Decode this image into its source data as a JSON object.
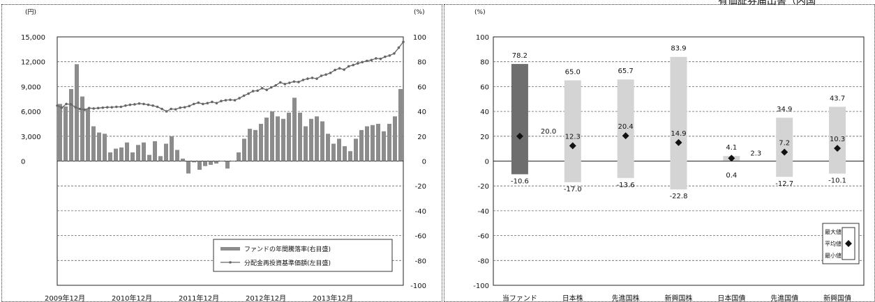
{
  "header_text": "有価証券届出書（内国",
  "chart_data": [
    {
      "type": "bar",
      "y_unit_left": "(円)",
      "y_unit_right": "(%)",
      "x_tick_labels": [
        "2009年12月",
        "2010年12月",
        "2011年12月",
        "2012年12月",
        "2013年12月"
      ],
      "y_left_ticks": [
        "15,000",
        "12,000",
        "9,000",
        "6,000",
        "3,000",
        "0"
      ],
      "y_right_ticks": [
        "100",
        "80",
        "60",
        "40",
        "20",
        "0",
        "-20",
        "-40",
        "-60",
        "-80",
        "-100"
      ],
      "ylim_left": [
        0,
        15000
      ],
      "ylim_right": [
        -100,
        100
      ],
      "grid": true,
      "legend_position": "bottom-right",
      "series": [
        {
          "name": "ファンドの年間騰落率(右目盛)",
          "kind": "bar",
          "axis": "right",
          "color": "#8c8c8c",
          "values": [
            46,
            44,
            58,
            78,
            52,
            42,
            28,
            23,
            22,
            7,
            10,
            11,
            15,
            7,
            13,
            15,
            5,
            16,
            4,
            14,
            20,
            9,
            2,
            -10,
            -1,
            -7,
            -4,
            -3,
            -2,
            0,
            -6,
            0,
            7,
            18,
            26,
            25,
            30,
            35,
            40,
            36,
            34,
            39,
            51,
            39,
            28,
            34,
            36,
            32,
            22,
            14,
            18,
            12,
            8,
            18,
            25,
            28,
            29,
            30,
            24,
            30,
            36,
            58
          ],
          "note": "monthly annual return, one bar per month from 2009年12月"
        },
        {
          "name": "分配金再投資基準価額(左目盛)",
          "kind": "line",
          "axis": "left",
          "color": "#666666",
          "values": [
            6700,
            6450,
            6900,
            6850,
            6500,
            6300,
            6200,
            6400,
            6350,
            6400,
            6450,
            6500,
            6500,
            6550,
            6550,
            6700,
            6800,
            6850,
            6950,
            6900,
            6800,
            6700,
            6550,
            6300,
            6000,
            6300,
            6250,
            6450,
            6500,
            6650,
            6900,
            7050,
            6900,
            7000,
            7150,
            7000,
            7250,
            7350,
            7400,
            7350,
            7600,
            7900,
            8150,
            8450,
            8500,
            8800,
            8600,
            8900,
            9150,
            9500,
            9300,
            9450,
            9600,
            9550,
            9800,
            9950,
            10050,
            9950,
            10300,
            10450,
            10650,
            11000,
            11200,
            11050,
            11450,
            11600,
            11800,
            11950,
            12100,
            12200,
            12400,
            12350,
            12600,
            12750,
            13000,
            13700,
            14400
          ]
        }
      ]
    },
    {
      "type": "bar",
      "subtype": "range",
      "y_unit": "(%)",
      "ylim": [
        -100,
        100
      ],
      "y_ticks": [
        "100",
        "80",
        "60",
        "40",
        "20",
        "0",
        "-20",
        "-40",
        "-60",
        "-80",
        "-100"
      ],
      "categories": [
        "当ファンド",
        "日本株",
        "先進国株",
        "新興国株",
        "日本国債",
        "先進国債",
        "新興国債"
      ],
      "max": [
        78.2,
        65.0,
        65.7,
        83.9,
        4.1,
        34.9,
        43.7
      ],
      "max_labels": [
        "78.2",
        "65.0",
        "65.7",
        "83.9",
        "4.1",
        "34.9",
        "43.7"
      ],
      "mean": [
        20.0,
        12.3,
        20.4,
        14.9,
        2.3,
        7.2,
        10.3
      ],
      "mean_labels": [
        "20.0",
        "12.3",
        "20.4",
        "14.9",
        "2.3",
        "7.2",
        "10.3"
      ],
      "min": [
        -10.6,
        -17.0,
        -13.6,
        -22.8,
        0.4,
        -12.7,
        -10.1
      ],
      "min_labels": [
        "-10.6",
        "-17.0",
        "-13.6",
        "-22.8",
        "0.4",
        "-12.7",
        "-10.1"
      ],
      "colors": {
        "fund": "#6e6e6e",
        "others": "#d4d4d4"
      },
      "grid": true,
      "legend_position": "bottom-right",
      "legend": {
        "max": "最大値",
        "mean": "平均値",
        "min": "最小値"
      }
    }
  ]
}
